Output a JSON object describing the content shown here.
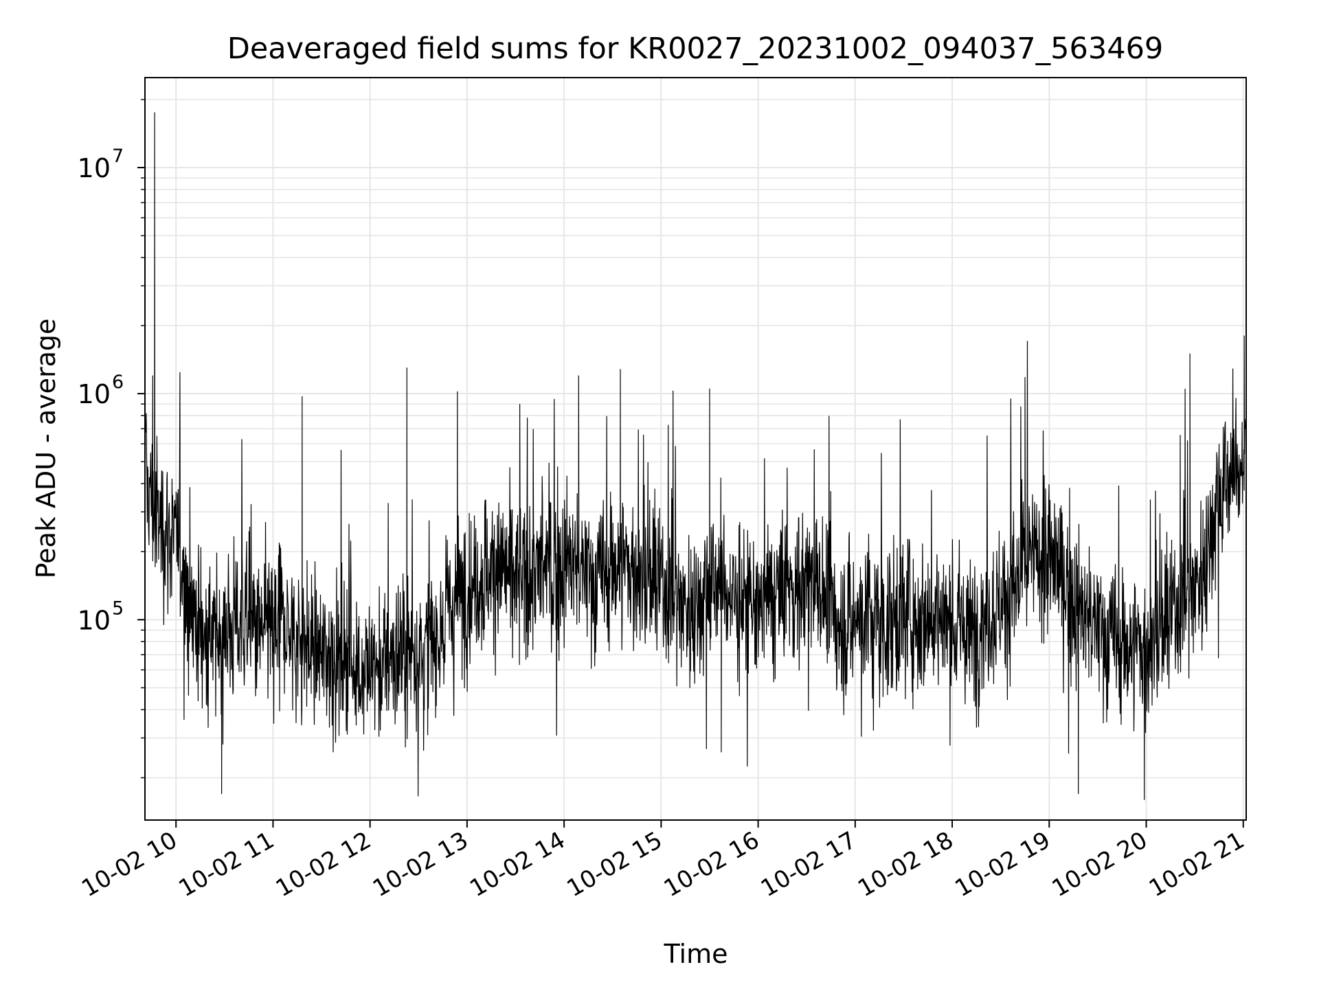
{
  "chart_data": {
    "type": "line",
    "title": "Deaveraged field sums for KR0027_20231002_094037_563469",
    "xlabel": "Time",
    "ylabel": "Peak ADU - average",
    "x_tick_labels": [
      "10-02 10",
      "10-02 11",
      "10-02 12",
      "10-02 13",
      "10-02 14",
      "10-02 15",
      "10-02 16",
      "10-02 17",
      "10-02 18",
      "10-02 19",
      "10-02 20",
      "10-02 21"
    ],
    "x_tick_hours": [
      10,
      11,
      12,
      13,
      14,
      15,
      16,
      17,
      18,
      19,
      20,
      21
    ],
    "xlim_hours": [
      9.68,
      21.03
    ],
    "yscale": "log",
    "ylim": [
      13000,
      25000000
    ],
    "y_tick_labels": [
      {
        "base": "10",
        "exp": "5",
        "value": 100000
      },
      {
        "base": "10",
        "exp": "6",
        "value": 1000000
      },
      {
        "base": "10",
        "exp": "7",
        "value": 10000000
      }
    ],
    "grid": true,
    "line_color": "#000000",
    "grid_color": "#e6e6e6",
    "series": [
      {
        "x_hours": [
          9.7,
          9.8,
          9.9,
          10.0,
          10.1,
          10.2,
          10.3,
          10.4,
          10.5,
          10.6,
          10.7,
          10.8,
          10.9,
          11.0,
          11.1,
          11.2,
          11.3,
          11.4,
          11.5,
          11.6,
          11.7,
          11.8,
          11.9,
          12.0,
          12.1,
          12.2,
          12.3,
          12.4,
          12.5,
          12.6,
          12.7,
          12.8,
          12.9,
          13.0,
          13.1,
          13.2,
          13.3,
          13.4,
          13.5,
          13.6,
          13.7,
          13.8,
          13.9,
          14.0,
          14.1,
          14.2,
          14.3,
          14.4,
          14.5,
          14.6,
          14.7,
          14.8,
          14.9,
          15.0,
          15.1,
          15.2,
          15.3,
          15.4,
          15.5,
          15.6,
          15.7,
          15.8,
          15.9,
          16.0,
          16.1,
          16.2,
          16.3,
          16.4,
          16.5,
          16.6,
          16.7,
          16.8,
          16.9,
          17.0,
          17.1,
          17.2,
          17.3,
          17.4,
          17.5,
          17.6,
          17.7,
          17.8,
          17.9,
          18.0,
          18.1,
          18.2,
          18.3,
          18.4,
          18.5,
          18.6,
          18.7,
          18.8,
          18.9,
          19.0,
          19.1,
          19.2,
          19.3,
          19.4,
          19.5,
          19.6,
          19.7,
          19.8,
          19.9,
          20.0,
          20.1,
          20.2,
          20.3,
          20.4,
          20.5,
          20.6,
          20.7,
          20.8,
          20.9,
          21.0
        ],
        "values": [
          400000,
          280000,
          250000,
          220000,
          160000,
          100000,
          85000,
          80000,
          90000,
          95000,
          100000,
          90000,
          85000,
          95000,
          100000,
          85000,
          80000,
          75000,
          70000,
          72000,
          68000,
          65000,
          60000,
          62000,
          60000,
          65000,
          70000,
          72000,
          75000,
          70000,
          90000,
          110000,
          125000,
          140000,
          150000,
          160000,
          170000,
          165000,
          150000,
          145000,
          160000,
          170000,
          165000,
          180000,
          175000,
          160000,
          150000,
          155000,
          170000,
          180000,
          165000,
          150000,
          145000,
          140000,
          130000,
          120000,
          115000,
          125000,
          140000,
          150000,
          130000,
          120000,
          115000,
          110000,
          120000,
          130000,
          140000,
          135000,
          150000,
          160000,
          110000,
          100000,
          95000,
          105000,
          110000,
          100000,
          95000,
          100000,
          110000,
          105000,
          100000,
          110000,
          100000,
          95000,
          90000,
          85000,
          100000,
          110000,
          120000,
          130000,
          150000,
          180000,
          190000,
          180000,
          170000,
          140000,
          110000,
          100000,
          90000,
          85000,
          80000,
          75000,
          80000,
          70000,
          85000,
          90000,
          110000,
          130000,
          140000,
          180000,
          300000,
          400000,
          450000,
          500000
        ]
      }
    ],
    "spikes": [
      {
        "x_hours": 9.78,
        "value": 17500000
      },
      {
        "x_hours": 9.76,
        "value": 1200000
      },
      {
        "x_hours": 10.47,
        "value": 17000
      },
      {
        "x_hours": 11.3,
        "value": 970000
      },
      {
        "x_hours": 12.38,
        "value": 1300000
      },
      {
        "x_hours": 12.9,
        "value": 1020000
      },
      {
        "x_hours": 14.15,
        "value": 1200000
      },
      {
        "x_hours": 14.58,
        "value": 1280000
      },
      {
        "x_hours": 15.5,
        "value": 1050000
      },
      {
        "x_hours": 15.62,
        "value": 26000
      },
      {
        "x_hours": 18.75,
        "value": 1180000
      },
      {
        "x_hours": 19.3,
        "value": 17000
      },
      {
        "x_hours": 19.98,
        "value": 16000
      },
      {
        "x_hours": 20.45,
        "value": 1500000
      },
      {
        "x_hours": 21.01,
        "value": 1800000
      }
    ]
  }
}
